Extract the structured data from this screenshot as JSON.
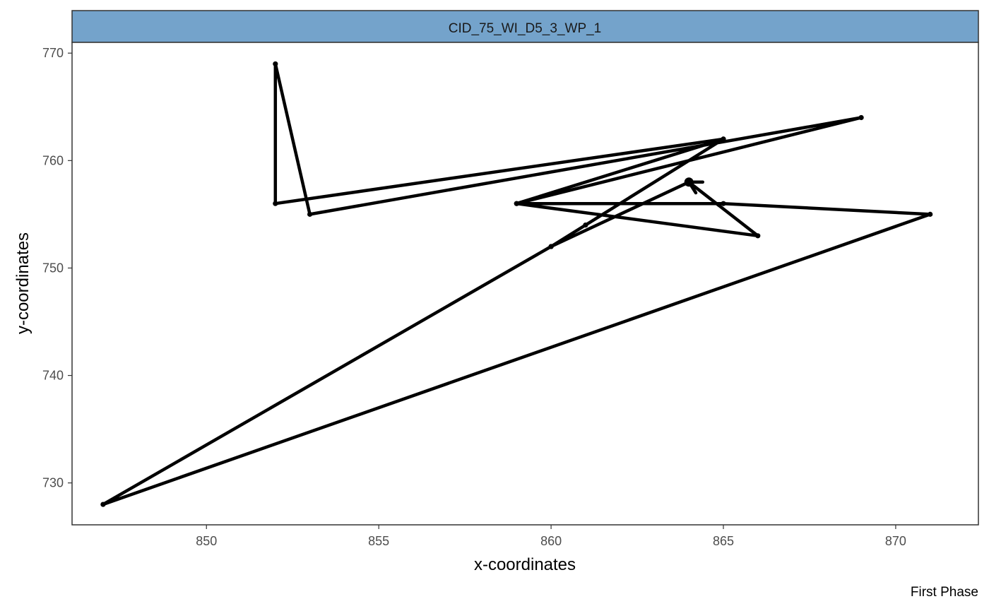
{
  "chart_data": {
    "type": "line",
    "facet_title": "CID_75_WI_D5_3_WP_1",
    "xlabel": "x-coordinates",
    "ylabel": "y-coordinates",
    "caption": "First Phase",
    "xlim": [
      846.1,
      872.4
    ],
    "ylim": [
      726.1,
      771.0
    ],
    "x_ticks": [
      850,
      855,
      860,
      865,
      870
    ],
    "y_ticks": [
      730,
      740,
      750,
      760,
      770
    ],
    "grid": false,
    "colors": {
      "strip": "#74a3cb",
      "line": "#000000",
      "tick": "#4d4d4d"
    },
    "series": [
      {
        "points": [
          [
            864,
            758
          ],
          [
            864.4,
            758
          ],
          [
            864,
            758
          ],
          [
            866,
            753
          ],
          [
            859,
            756
          ],
          [
            865,
            762
          ],
          [
            860,
            752
          ],
          [
            847,
            728
          ],
          [
            871,
            755
          ],
          [
            865,
            756
          ],
          [
            859,
            756
          ],
          [
            869,
            764
          ],
          [
            853,
            755
          ],
          [
            852,
            769
          ],
          [
            852,
            756
          ],
          [
            865,
            762
          ],
          [
            861,
            754
          ],
          [
            860,
            752
          ],
          [
            864,
            758
          ],
          [
            864.2,
            757
          ]
        ]
      }
    ]
  }
}
